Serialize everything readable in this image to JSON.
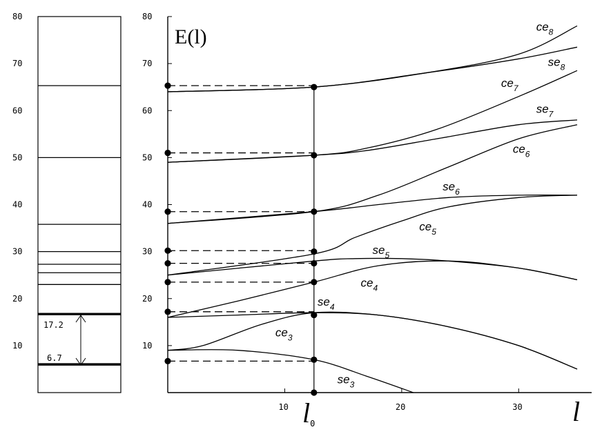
{
  "chart_data": [
    {
      "type": "level-diagram",
      "y_ticks": [
        "10",
        "20",
        "30",
        "40",
        "50",
        "60",
        "70",
        "80"
      ],
      "ylim": [
        0,
        80
      ],
      "levels": [
        6.0,
        16.7,
        23.0,
        25.5,
        27.3,
        30.0,
        35.8,
        50.0,
        65.3
      ],
      "thick_levels": [
        6.0,
        16.7
      ],
      "gap_annotation": {
        "from": 6.0,
        "to": 16.7,
        "upper_label": "17.2",
        "lower_label": "6.7"
      }
    },
    {
      "type": "line",
      "title": "E(l)",
      "xlabel": "l",
      "xlim": [
        0,
        35
      ],
      "ylim": [
        0,
        80
      ],
      "x_ticks": [
        "10",
        "20",
        "30"
      ],
      "y_ticks": [
        "10",
        "20",
        "30",
        "40",
        "50",
        "60",
        "70",
        "80"
      ],
      "x_marker_value": 12.5,
      "x_marker_label": "l",
      "x_marker_subscript": "0",
      "series": [
        {
          "name": "ce8",
          "x": [
            0,
            12.5,
            22,
            30,
            35
          ],
          "y": [
            64,
            65,
            68,
            72,
            78
          ]
        },
        {
          "name": "se8",
          "x": [
            0,
            12.5,
            22,
            30,
            35
          ],
          "y": [
            64,
            65,
            68,
            71,
            73.5
          ]
        },
        {
          "name": "ce7",
          "x": [
            0,
            12.5,
            17,
            23,
            30,
            35
          ],
          "y": [
            49,
            50.5,
            52,
            56,
            63,
            68.5
          ]
        },
        {
          "name": "se7",
          "x": [
            0,
            12.5,
            17,
            23,
            30,
            35
          ],
          "y": [
            49,
            50.5,
            51.5,
            54,
            57,
            58
          ]
        },
        {
          "name": "ce6",
          "x": [
            0,
            12.5,
            18,
            24,
            30,
            35
          ],
          "y": [
            36,
            38.5,
            42,
            48,
            54,
            57
          ]
        },
        {
          "name": "se6",
          "x": [
            0,
            12.5,
            18,
            24,
            30,
            35
          ],
          "y": [
            36,
            38.5,
            40,
            41.5,
            42,
            42
          ]
        },
        {
          "name": "ce5",
          "x": [
            0,
            12.5,
            16,
            20,
            24,
            30,
            35
          ],
          "y": [
            25,
            29.5,
            33,
            36.5,
            39.5,
            41.5,
            42
          ]
        },
        {
          "name": "se5",
          "x": [
            0,
            12.5,
            16,
            20,
            24,
            30,
            35
          ],
          "y": [
            25,
            28,
            28.5,
            28.5,
            28,
            26.5,
            24
          ]
        },
        {
          "name": "ce4",
          "x": [
            0,
            6,
            12.5,
            18,
            24,
            30,
            35
          ],
          "y": [
            16,
            19.5,
            23.5,
            27,
            28,
            26.5,
            24
          ]
        },
        {
          "name": "se4",
          "x": [
            0,
            6,
            12.5,
            18,
            24,
            30,
            35
          ],
          "y": [
            16,
            16.5,
            17,
            16.5,
            14,
            10,
            5
          ]
        },
        {
          "name": "ce3",
          "x": [
            0,
            3,
            8,
            12.5,
            18,
            24,
            30,
            35
          ],
          "y": [
            9,
            10,
            14.5,
            17,
            16.5,
            14,
            10,
            5
          ]
        },
        {
          "name": "se3",
          "x": [
            0,
            6,
            12.5,
            17,
            21
          ],
          "y": [
            9,
            9,
            7,
            3.5,
            0
          ]
        }
      ],
      "dashed_levels": [
        6.7,
        17.2,
        23.5,
        27.5,
        30.2,
        38.5,
        51,
        65.3
      ],
      "left_dots": [
        6.7,
        17.2,
        23.5,
        27.5,
        30.2,
        38.5,
        51,
        65.3
      ],
      "marker_dots": [
        0,
        7,
        16.5,
        23.5,
        27.5,
        30,
        38.5,
        50.5,
        65
      ]
    }
  ],
  "curve_labels": [
    {
      "base": "ce",
      "sub": "8",
      "x": 31.5,
      "y": 77
    },
    {
      "base": "se",
      "sub": "8",
      "x": 32.5,
      "y": 69.5
    },
    {
      "base": "ce",
      "sub": "7",
      "x": 28.5,
      "y": 65
    },
    {
      "base": "se",
      "sub": "7",
      "x": 31.5,
      "y": 59.5
    },
    {
      "base": "ce",
      "sub": "6",
      "x": 29.5,
      "y": 51
    },
    {
      "base": "se",
      "sub": "6",
      "x": 23.5,
      "y": 43
    },
    {
      "base": "ce",
      "sub": "5",
      "x": 21.5,
      "y": 34.5
    },
    {
      "base": "se",
      "sub": "5",
      "x": 17.5,
      "y": 29.5
    },
    {
      "base": "ce",
      "sub": "4",
      "x": 16.5,
      "y": 22.5
    },
    {
      "base": "se",
      "sub": "4",
      "x": 12.8,
      "y": 18.5
    },
    {
      "base": "ce",
      "sub": "3",
      "x": 9.2,
      "y": 12
    },
    {
      "base": "se",
      "sub": "3",
      "x": 14.5,
      "y": 2
    }
  ]
}
